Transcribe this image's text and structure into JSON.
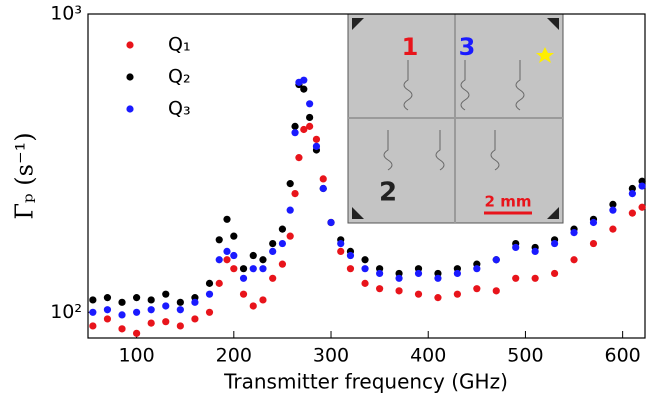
{
  "chart_data": {
    "type": "scatter",
    "x_label": "Transmitter frequency (GHz)",
    "y_label": "Γₚ (s⁻¹)",
    "log_y": true,
    "legend": "upper left",
    "x": [
      55,
      70,
      85,
      100,
      115,
      130,
      145,
      160,
      175,
      185,
      193,
      200,
      210,
      220,
      230,
      240,
      250,
      258,
      263,
      267,
      272,
      278,
      285,
      292,
      300,
      310,
      320,
      335,
      350,
      370,
      390,
      410,
      430,
      450,
      470,
      490,
      510,
      530,
      550,
      570,
      590,
      610,
      620
    ],
    "series": [
      {
        "name": "Q₁",
        "color": "#e8141b",
        "values": [
          90,
          95,
          88,
          85,
          92,
          93,
          90,
          95,
          100,
          125,
          150,
          140,
          115,
          105,
          110,
          130,
          145,
          180,
          250,
          330,
          410,
          420,
          380,
          280,
          200,
          160,
          140,
          125,
          120,
          118,
          115,
          112,
          115,
          120,
          118,
          130,
          130,
          135,
          150,
          170,
          190,
          215,
          225
        ]
      },
      {
        "name": "Q₂",
        "color": "#000000",
        "values": [
          110,
          112,
          108,
          112,
          110,
          115,
          108,
          112,
          125,
          175,
          205,
          180,
          140,
          155,
          150,
          170,
          190,
          270,
          420,
          580,
          560,
          450,
          350,
          260,
          200,
          175,
          160,
          150,
          140,
          135,
          140,
          135,
          140,
          145,
          150,
          170,
          165,
          175,
          190,
          205,
          230,
          260,
          275
        ]
      },
      {
        "name": "Q₃",
        "color": "#1a1aff",
        "values": [
          100,
          102,
          98,
          100,
          102,
          105,
          102,
          108,
          115,
          150,
          160,
          155,
          130,
          140,
          140,
          160,
          170,
          220,
          400,
          590,
          600,
          500,
          360,
          260,
          200,
          170,
          155,
          140,
          135,
          130,
          135,
          130,
          135,
          140,
          150,
          165,
          160,
          170,
          185,
          200,
          220,
          250,
          265
        ]
      }
    ],
    "xlim": [
      50,
      623
    ],
    "xticks": [
      100,
      200,
      300,
      400,
      500,
      600
    ],
    "ylim": [
      82,
      1000
    ],
    "yticks": [
      {
        "value": 100,
        "label": "10²"
      },
      {
        "value": 1000,
        "label": "10³"
      }
    ],
    "inset": {
      "labels": [
        "1",
        "3",
        "2",
        "2 mm"
      ]
    }
  }
}
